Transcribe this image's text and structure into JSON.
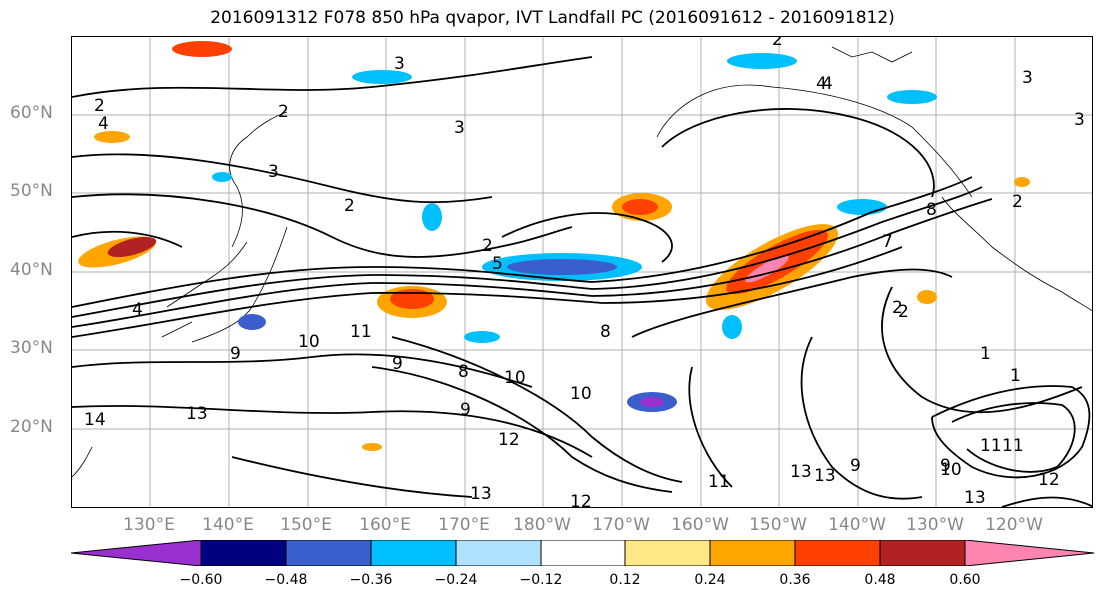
{
  "title": "2016091312 F078 850 hPa qvapor, IVT Landfall PC (2016091612 - 2016091812)",
  "lat_labels": [
    "60°N",
    "50°N",
    "40°N",
    "30°N",
    "20°N"
  ],
  "lon_labels": [
    "130°E",
    "140°E",
    "150°E",
    "160°E",
    "170°E",
    "180°W",
    "170°W",
    "160°W",
    "150°W",
    "140°W",
    "130°W",
    "120°W"
  ],
  "colorbar": {
    "ticks": [
      "−0.60",
      "−0.48",
      "−0.36",
      "−0.24",
      "−0.12",
      "0.12",
      "0.24",
      "0.36",
      "0.48",
      "0.60"
    ],
    "colors": [
      "#9b30d0",
      "#000080",
      "#3a5fcd",
      "#00bfff",
      "#b0e2ff",
      "#ffffff",
      "#ffe885",
      "#ffa500",
      "#ff4000",
      "#b22222",
      "#ff85b0"
    ]
  },
  "contour_labels": [
    "2",
    "3",
    "4",
    "2",
    "4",
    "2",
    "3",
    "3",
    "2",
    "2",
    "1",
    "2",
    "4",
    "4",
    "3",
    "2",
    "3",
    "8",
    "9",
    "10",
    "11",
    "9",
    "13",
    "8",
    "9",
    "10",
    "10",
    "12",
    "9",
    "11",
    "13",
    "12",
    "10",
    "13",
    "13",
    "11",
    "9",
    "11",
    "12",
    "13",
    "14",
    "5",
    "8",
    "2",
    "1",
    "7"
  ]
}
